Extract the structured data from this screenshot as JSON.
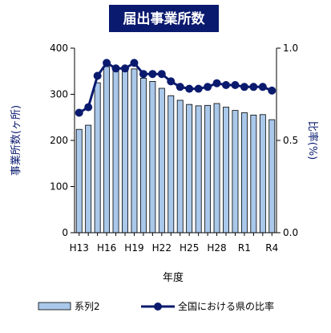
{
  "chart_data": {
    "type": "bar",
    "title": "届出事業所数",
    "xlabel": "年度",
    "ylabel": "事業所数(ヶ所)",
    "y2label": "比率(%)",
    "categories": [
      "H13",
      "H14",
      "H15",
      "H16",
      "H17",
      "H18",
      "H19",
      "H20",
      "H21",
      "H22",
      "H23",
      "H24",
      "H25",
      "H26",
      "H27",
      "H28",
      "H29",
      "H30",
      "R1",
      "R2",
      "R3",
      "R4"
    ],
    "x_tick_labels": [
      "H13",
      "H16",
      "H19",
      "H22",
      "H25",
      "H28",
      "R1",
      "R4"
    ],
    "ylim": [
      0,
      400
    ],
    "y_ticks": [
      "0",
      "100",
      "200",
      "300",
      "400"
    ],
    "y2lim": [
      0,
      1.0
    ],
    "y2_ticks": [
      "0.0",
      "0.5",
      "1.0"
    ],
    "series": [
      {
        "name": "系列2",
        "type": "bar",
        "axis": "left",
        "values": [
          224,
          233,
          325,
          360,
          352,
          350,
          355,
          335,
          328,
          313,
          297,
          287,
          278,
          275,
          276,
          280,
          272,
          265,
          260,
          255,
          256,
          245
        ]
      },
      {
        "name": "全国における県の比率",
        "type": "line",
        "axis": "right",
        "values": [
          0.65,
          0.68,
          0.85,
          0.92,
          0.89,
          0.89,
          0.92,
          0.86,
          0.86,
          0.86,
          0.82,
          0.79,
          0.78,
          0.78,
          0.79,
          0.81,
          0.8,
          0.8,
          0.79,
          0.79,
          0.79,
          0.77
        ]
      }
    ],
    "legend_position": "bottom",
    "grid": false
  },
  "colors": {
    "bar_fill": "#a9c8ea",
    "line": "#0a1a6e",
    "title_bg": "#0a1a6e"
  }
}
